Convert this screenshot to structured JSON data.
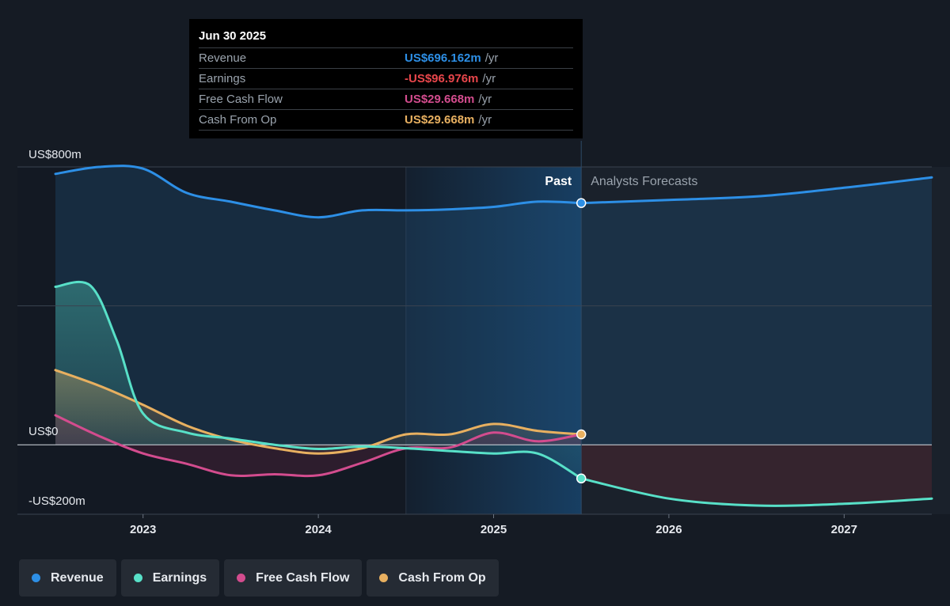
{
  "tooltip": {
    "date": "Jun 30 2025",
    "rows": [
      {
        "label": "Revenue",
        "value": "US$696.162m",
        "unit": "/yr",
        "color": "#2d8fe6"
      },
      {
        "label": "Earnings",
        "value": "-US$96.976m",
        "unit": "/yr",
        "color": "#e8464b"
      },
      {
        "label": "Free Cash Flow",
        "value": "US$29.668m",
        "unit": "/yr",
        "color": "#d34c8e"
      },
      {
        "label": "Cash From Op",
        "value": "US$29.668m",
        "unit": "/yr",
        "color": "#e8b060"
      }
    ]
  },
  "labels": {
    "past": "Past",
    "forecast": "Analysts Forecasts"
  },
  "legend": [
    {
      "label": "Revenue",
      "color": "#2d8fe6"
    },
    {
      "label": "Earnings",
      "color": "#58e0c8"
    },
    {
      "label": "Free Cash Flow",
      "color": "#d34c8e"
    },
    {
      "label": "Cash From Op",
      "color": "#e8b060"
    }
  ],
  "chart_data": {
    "type": "line",
    "ylim": [
      -200,
      800
    ],
    "yticks": [
      {
        "value": 800,
        "label": "US$800m"
      },
      {
        "value": 0,
        "label": "US$0"
      },
      {
        "value": -200,
        "label": "-US$200m"
      }
    ],
    "xlim": [
      2022.5,
      2027.5
    ],
    "xticks": [
      {
        "value": 2023,
        "label": "2023"
      },
      {
        "value": 2024,
        "label": "2024"
      },
      {
        "value": 2025,
        "label": "2025"
      },
      {
        "value": 2026,
        "label": "2026"
      },
      {
        "value": 2027,
        "label": "2027"
      }
    ],
    "past_end": 2025.5,
    "grid": true,
    "legend": "bottom",
    "series": [
      {
        "name": "Revenue",
        "color": "#2d8fe6",
        "points": [
          [
            2022.5,
            780
          ],
          [
            2022.75,
            800
          ],
          [
            2023.0,
            795
          ],
          [
            2023.25,
            725
          ],
          [
            2023.5,
            700
          ],
          [
            2023.75,
            675
          ],
          [
            2024.0,
            655
          ],
          [
            2024.25,
            675
          ],
          [
            2024.5,
            675
          ],
          [
            2024.75,
            678
          ],
          [
            2025.0,
            685
          ],
          [
            2025.25,
            700
          ],
          [
            2025.5,
            696
          ]
        ],
        "forecast": [
          [
            2025.5,
            696
          ],
          [
            2026.0,
            705
          ],
          [
            2026.5,
            715
          ],
          [
            2027.0,
            740
          ],
          [
            2027.5,
            770
          ]
        ]
      },
      {
        "name": "Earnings",
        "color": "#58e0c8",
        "points": [
          [
            2022.5,
            455
          ],
          [
            2022.7,
            458
          ],
          [
            2022.85,
            300
          ],
          [
            2023.0,
            90
          ],
          [
            2023.25,
            35
          ],
          [
            2023.5,
            18
          ],
          [
            2023.75,
            0
          ],
          [
            2024.0,
            -12
          ],
          [
            2024.25,
            -5
          ],
          [
            2024.5,
            -10
          ],
          [
            2024.75,
            -18
          ],
          [
            2025.0,
            -25
          ],
          [
            2025.25,
            -25
          ],
          [
            2025.5,
            -97
          ]
        ],
        "forecast": [
          [
            2025.5,
            -97
          ],
          [
            2026.0,
            -155
          ],
          [
            2026.5,
            -175
          ],
          [
            2027.0,
            -170
          ],
          [
            2027.5,
            -155
          ]
        ]
      },
      {
        "name": "Free Cash Flow",
        "color": "#d34c8e",
        "points": [
          [
            2022.5,
            85
          ],
          [
            2022.75,
            25
          ],
          [
            2023.0,
            -25
          ],
          [
            2023.25,
            -55
          ],
          [
            2023.5,
            -88
          ],
          [
            2023.75,
            -85
          ],
          [
            2024.0,
            -88
          ],
          [
            2024.25,
            -52
          ],
          [
            2024.5,
            -10
          ],
          [
            2024.75,
            -8
          ],
          [
            2025.0,
            35
          ],
          [
            2025.25,
            10
          ],
          [
            2025.5,
            30
          ]
        ]
      },
      {
        "name": "Cash From Op",
        "color": "#e8b060",
        "points": [
          [
            2022.5,
            215
          ],
          [
            2022.75,
            170
          ],
          [
            2023.0,
            115
          ],
          [
            2023.25,
            55
          ],
          [
            2023.5,
            15
          ],
          [
            2023.75,
            -10
          ],
          [
            2024.0,
            -25
          ],
          [
            2024.25,
            -10
          ],
          [
            2024.5,
            30
          ],
          [
            2024.75,
            30
          ],
          [
            2025.0,
            60
          ],
          [
            2025.25,
            40
          ],
          [
            2025.5,
            30
          ]
        ]
      }
    ]
  }
}
